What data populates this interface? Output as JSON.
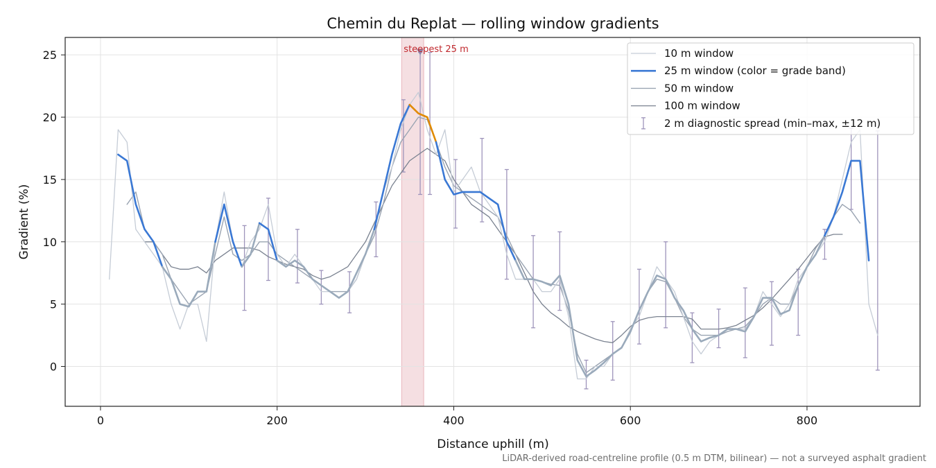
{
  "chart_data": {
    "type": "line",
    "title": "Chemin du Replat — rolling window gradients",
    "xlabel": "Distance uphill (m)",
    "ylabel": "Gradient (%)",
    "footnote": "LiDAR-derived road-centreline profile (0.5 m DTM, bilinear) — not a surveyed asphalt gradient",
    "xlim": [
      -40,
      928
    ],
    "ylim": [
      -3.2,
      26.4
    ],
    "xticks": [
      0,
      200,
      400,
      600,
      800
    ],
    "yticks": [
      0,
      5,
      10,
      15,
      20,
      25
    ],
    "grid": true,
    "legend": "upper right",
    "x": [
      10,
      20,
      30,
      40,
      50,
      60,
      70,
      80,
      90,
      100,
      110,
      120,
      130,
      140,
      150,
      160,
      170,
      180,
      190,
      200,
      210,
      220,
      230,
      240,
      250,
      260,
      270,
      280,
      290,
      300,
      310,
      320,
      330,
      340,
      350,
      360,
      370,
      380,
      390,
      400,
      410,
      420,
      430,
      440,
      450,
      460,
      470,
      480,
      490,
      500,
      510,
      520,
      530,
      540,
      550,
      560,
      570,
      580,
      590,
      600,
      610,
      620,
      630,
      640,
      650,
      660,
      670,
      680,
      690,
      700,
      710,
      720,
      730,
      740,
      750,
      760,
      770,
      780,
      790,
      800,
      810,
      820,
      830,
      840,
      850,
      860,
      870,
      880
    ],
    "series": [
      {
        "name": "10 m window",
        "color": "#c5ccd6",
        "width": 1.3,
        "values": [
          7,
          19,
          18,
          11,
          10,
          9,
          8,
          5,
          3,
          5,
          5,
          2,
          10,
          14,
          10,
          8,
          10,
          11,
          13,
          9,
          8,
          9,
          8,
          7,
          6,
          6,
          5.5,
          6,
          7,
          9,
          11,
          14,
          16,
          19,
          21,
          22,
          19,
          17,
          19,
          14,
          15,
          16,
          14,
          13,
          12,
          9,
          7,
          7,
          7,
          6,
          6,
          7,
          4,
          -1,
          -1,
          0,
          0,
          1,
          1.5,
          3,
          4,
          6,
          8,
          7,
          6,
          4,
          2,
          1,
          2,
          2.5,
          3,
          3,
          3,
          4,
          6,
          5,
          4,
          5,
          7,
          8,
          9,
          10,
          12,
          15,
          18,
          19,
          5,
          2.5
        ]
      },
      {
        "name": "25 m window (color = grade band)",
        "color": "#3a78d4",
        "width": 2.6,
        "grade_bands": [
          {
            "below": 10,
            "color": "#9aaabb"
          },
          {
            "below": 20,
            "color": "#3a78d4"
          },
          {
            "color": "#e08a00"
          }
        ],
        "values": [
          null,
          17,
          16.5,
          13,
          11,
          10,
          8,
          7,
          5,
          4.8,
          6,
          6,
          10,
          13,
          10,
          8,
          9,
          11.5,
          11,
          8.5,
          8,
          8.5,
          8,
          7,
          6.5,
          6,
          5.5,
          6,
          7.5,
          9,
          11,
          14,
          17,
          19.5,
          21,
          20.3,
          20,
          18,
          15,
          13.8,
          14,
          14,
          14,
          13.5,
          13,
          10,
          8.5,
          7,
          7,
          6.8,
          6.5,
          7.3,
          5,
          0.5,
          -0.8,
          -0.3,
          0.3,
          1,
          1.5,
          2.8,
          4.5,
          6,
          7.3,
          7,
          5.5,
          4.5,
          3,
          2,
          2.3,
          2.5,
          3,
          3,
          2.8,
          4,
          5.5,
          5.5,
          4.2,
          4.5,
          6.5,
          8,
          9,
          10.5,
          12,
          14,
          16.5,
          16.5,
          8.5,
          null
        ]
      },
      {
        "name": "50 m window",
        "color": "#9aa4b2",
        "width": 1.4,
        "values": [
          null,
          null,
          13,
          14,
          11,
          10,
          9,
          7,
          6,
          5,
          5.5,
          6,
          9,
          12,
          9,
          8.5,
          9,
          10,
          10,
          9,
          8.5,
          8,
          7.5,
          7,
          6.5,
          6,
          6,
          6,
          7,
          9,
          10.5,
          13,
          16,
          18,
          19,
          20,
          19.8,
          18,
          16,
          14.5,
          14,
          13.5,
          13,
          12.5,
          12,
          10.5,
          9,
          8,
          7,
          6.8,
          6.6,
          6.5,
          4.5,
          1,
          -0.5,
          0,
          0.5,
          1,
          1.5,
          2.7,
          4.5,
          6,
          7,
          6.8,
          5.5,
          4,
          3,
          2.5,
          2.5,
          2.5,
          2.8,
          3,
          3.2,
          4,
          5,
          5.5,
          5,
          5,
          6.5,
          8,
          9.5,
          10.5,
          12,
          13,
          12.5,
          11.5,
          null,
          null
        ]
      },
      {
        "name": "100 m window",
        "color": "#7a8290",
        "width": 1.3,
        "values": [
          null,
          null,
          null,
          null,
          10,
          10,
          9,
          8,
          7.8,
          7.8,
          8,
          7.5,
          8.5,
          9,
          9.5,
          9.5,
          9.5,
          9.3,
          8.8,
          8.5,
          8.2,
          8,
          7.8,
          7.3,
          7,
          7.2,
          7.6,
          8,
          9,
          10,
          11.5,
          13,
          14.5,
          15.5,
          16.5,
          17,
          17.5,
          17,
          16.5,
          15,
          14,
          13,
          12.5,
          12,
          11,
          10,
          9,
          7.5,
          6,
          5,
          4.3,
          3.8,
          3.2,
          2.8,
          2.5,
          2.2,
          2,
          1.9,
          2.5,
          3.2,
          3.7,
          3.9,
          4,
          4,
          4,
          4,
          3.8,
          3,
          3,
          3,
          3.1,
          3.3,
          3.7,
          4.1,
          4.7,
          5.4,
          6.2,
          7,
          7.8,
          8.7,
          9.6,
          10.4,
          10.6,
          10.6,
          null,
          null,
          null,
          null
        ]
      }
    ],
    "error_bars": {
      "name": "2 m diagnostic spread (min–max, ±12 m)",
      "color": "#9e94bb",
      "x": [
        163,
        190,
        223,
        250,
        282,
        312,
        343,
        362,
        373,
        402,
        432,
        460,
        490,
        520,
        550,
        580,
        610,
        640,
        670,
        700,
        730,
        760,
        790,
        820,
        850,
        880
      ],
      "low": [
        4.5,
        6.9,
        6.7,
        5,
        4.3,
        8.8,
        15.6,
        13.8,
        13.8,
        11.1,
        11.6,
        7,
        3.1,
        4.5,
        -1.8,
        -1.1,
        1.8,
        3.1,
        0.3,
        1.5,
        0.7,
        1.7,
        2.5,
        8.6,
        12.6,
        -0.3
      ],
      "high": [
        11.3,
        13.5,
        11,
        7.7,
        7.6,
        13.2,
        21.4,
        25.2,
        25.2,
        16.6,
        18.3,
        15.8,
        10.5,
        10.8,
        0.5,
        3.6,
        7.8,
        10,
        4.3,
        4.6,
        6.3,
        6.8,
        7.8,
        11,
        19.1,
        18.9
      ]
    },
    "highlight": {
      "text": "steepest 25 m",
      "x0": 341,
      "x1": 366,
      "marker_x": 362,
      "marker_y": 25.2,
      "color": "#d9808c",
      "text_color": "#c0282d"
    }
  }
}
